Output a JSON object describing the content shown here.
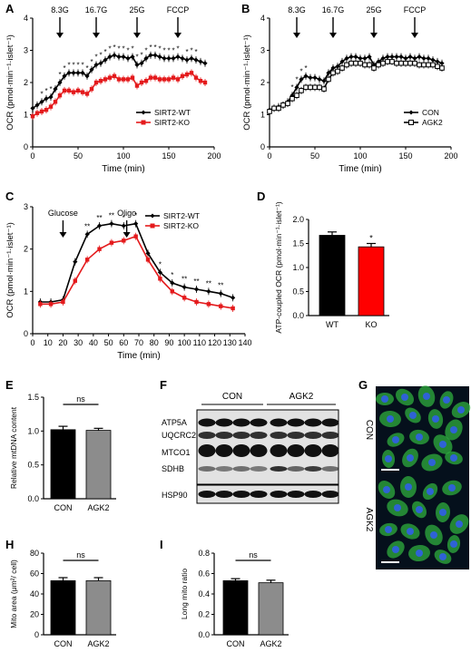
{
  "colors": {
    "black": "#000000",
    "red": "#e41a1c",
    "gray": "#8c8c8c",
    "blot_bg": "#e2e2e2",
    "band": "#111111",
    "micro_bg": "#05101c",
    "mito": "#2fae3d",
    "nucleus": "#2f62d6"
  },
  "panels": {
    "A": "A",
    "B": "B",
    "C": "C",
    "D": "D",
    "E": "E",
    "F": "F",
    "G": "G",
    "H": "H",
    "I": "I"
  },
  "chart_data": [
    {
      "panel": "A",
      "type": "line",
      "xlabel": "Time (min)",
      "ylabel": "OCR (pmol·min⁻¹·islet⁻¹)",
      "xlim": [
        0,
        200
      ],
      "ylim": [
        0,
        4
      ],
      "xticks": [
        "0",
        "50",
        "100",
        "150",
        "200"
      ],
      "yticks": [
        "0",
        "1",
        "2",
        "3",
        "4"
      ],
      "arrows": [
        {
          "label": "8.3G",
          "x": 30
        },
        {
          "label": "16.7G",
          "x": 70
        },
        {
          "label": "25G",
          "x": 115
        },
        {
          "label": "FCCP",
          "x": 160
        }
      ],
      "x": [
        0,
        5,
        10,
        15,
        20,
        25,
        30,
        35,
        40,
        45,
        50,
        55,
        60,
        65,
        70,
        75,
        80,
        85,
        90,
        95,
        100,
        105,
        110,
        115,
        120,
        125,
        130,
        135,
        140,
        145,
        150,
        155,
        160,
        165,
        170,
        175,
        180,
        185,
        190
      ],
      "series": [
        {
          "name": "SIRT2-WT",
          "color": "#000000",
          "marker": "diamond",
          "values": [
            1.2,
            1.3,
            1.4,
            1.5,
            1.55,
            1.8,
            2.0,
            2.2,
            2.3,
            2.3,
            2.3,
            2.3,
            2.2,
            2.4,
            2.55,
            2.6,
            2.7,
            2.8,
            2.85,
            2.8,
            2.8,
            2.75,
            2.8,
            2.55,
            2.6,
            2.75,
            2.85,
            2.85,
            2.8,
            2.75,
            2.75,
            2.75,
            2.8,
            2.75,
            2.7,
            2.75,
            2.7,
            2.65,
            2.6
          ]
        },
        {
          "name": "SIRT2-KO",
          "color": "#e41a1c",
          "marker": "square",
          "values": [
            0.95,
            1.05,
            1.1,
            1.15,
            1.25,
            1.4,
            1.6,
            1.75,
            1.75,
            1.7,
            1.75,
            1.7,
            1.65,
            1.8,
            2.0,
            2.05,
            2.1,
            2.15,
            2.2,
            2.1,
            2.1,
            2.1,
            2.15,
            1.9,
            2.0,
            2.05,
            2.15,
            2.15,
            2.1,
            2.1,
            2.1,
            2.15,
            2.1,
            2.2,
            2.25,
            2.3,
            2.15,
            2.05,
            2.0
          ]
        }
      ],
      "stars": [
        "*",
        "*",
        "*",
        "*",
        "*",
        "*",
        "*",
        "*",
        "*",
        "*",
        "*",
        "*",
        "*",
        "*",
        "*",
        "*",
        "*",
        "*",
        "*",
        "*",
        "*",
        "*",
        "*",
        "*",
        "*",
        "*",
        "*",
        "*",
        "*",
        "*",
        "*",
        "*",
        "*"
      ]
    },
    {
      "panel": "B",
      "type": "line",
      "xlabel": "Time (min)",
      "ylabel": "OCR (pmol·min⁻¹·islet⁻¹)",
      "xlim": [
        0,
        200
      ],
      "ylim": [
        0,
        4
      ],
      "xticks": [
        "0",
        "50",
        "100",
        "150",
        "200"
      ],
      "yticks": [
        "0",
        "1",
        "2",
        "3",
        "4"
      ],
      "arrows": [
        {
          "label": "8.3G",
          "x": 30
        },
        {
          "label": "16.7G",
          "x": 70
        },
        {
          "label": "25G",
          "x": 115
        },
        {
          "label": "FCCP",
          "x": 160
        }
      ],
      "x": [
        0,
        5,
        10,
        15,
        20,
        25,
        30,
        35,
        40,
        45,
        50,
        55,
        60,
        65,
        70,
        75,
        80,
        85,
        90,
        95,
        100,
        105,
        110,
        115,
        120,
        125,
        130,
        135,
        140,
        145,
        150,
        155,
        160,
        165,
        170,
        175,
        180,
        185,
        190
      ],
      "series": [
        {
          "name": "CON",
          "color": "#000000",
          "marker": "diamond",
          "values": [
            1.15,
            1.2,
            1.25,
            1.3,
            1.4,
            1.6,
            1.85,
            2.1,
            2.2,
            2.15,
            2.15,
            2.1,
            2.05,
            2.3,
            2.45,
            2.5,
            2.65,
            2.75,
            2.8,
            2.8,
            2.75,
            2.75,
            2.8,
            2.55,
            2.65,
            2.75,
            2.8,
            2.8,
            2.8,
            2.8,
            2.75,
            2.8,
            2.75,
            2.8,
            2.75,
            2.75,
            2.7,
            2.65,
            2.6
          ]
        },
        {
          "name": "AGK2",
          "color": "#000000",
          "marker": "open-square",
          "values": [
            1.1,
            1.2,
            1.2,
            1.3,
            1.35,
            1.5,
            1.6,
            1.75,
            1.85,
            1.85,
            1.85,
            1.85,
            1.8,
            2.1,
            2.3,
            2.35,
            2.45,
            2.55,
            2.6,
            2.6,
            2.6,
            2.55,
            2.55,
            2.45,
            2.55,
            2.6,
            2.65,
            2.65,
            2.6,
            2.6,
            2.6,
            2.6,
            2.6,
            2.55,
            2.55,
            2.55,
            2.55,
            2.5,
            2.45
          ]
        }
      ],
      "stars": [
        "*",
        "*",
        "*",
        "*"
      ]
    },
    {
      "panel": "C",
      "type": "line",
      "xlabel": "Time (min)",
      "ylabel": "OCR (pmol·min⁻¹·islet⁻¹)",
      "xlim": [
        0,
        140
      ],
      "ylim": [
        0,
        3
      ],
      "xticks": [
        "0",
        "10",
        "20",
        "30",
        "40",
        "50",
        "60",
        "70",
        "80",
        "90",
        "100",
        "110",
        "120",
        "130",
        "140"
      ],
      "yticks": [
        "0",
        "1",
        "2",
        "3"
      ],
      "arrows": [
        {
          "label": "Glucose",
          "x": 20
        },
        {
          "label": "Oligo",
          "x": 62
        }
      ],
      "x": [
        5,
        12,
        20,
        28,
        36,
        44,
        52,
        60,
        68,
        76,
        84,
        92,
        100,
        108,
        116,
        124,
        132
      ],
      "series": [
        {
          "name": "SIRT2-WT",
          "color": "#000000",
          "marker": "diamond",
          "values": [
            0.75,
            0.75,
            0.8,
            1.7,
            2.35,
            2.55,
            2.6,
            2.55,
            2.6,
            1.9,
            1.45,
            1.2,
            1.1,
            1.05,
            1.0,
            0.95,
            0.85
          ]
        },
        {
          "name": "SIRT2-KO",
          "color": "#e41a1c",
          "marker": "square",
          "values": [
            0.7,
            0.7,
            0.75,
            1.25,
            1.75,
            2.0,
            2.15,
            2.2,
            2.3,
            1.75,
            1.3,
            1.0,
            0.85,
            0.75,
            0.7,
            0.65,
            0.6
          ]
        }
      ],
      "stars": [
        "**",
        "**",
        "**",
        "*",
        "*",
        "*",
        "*",
        "**",
        "**",
        "**",
        "**"
      ]
    },
    {
      "panel": "D",
      "type": "bar",
      "ylabel": "ATP-coupled OCR (pmol·min⁻¹·islet⁻¹)",
      "categories": [
        "WT",
        "KO"
      ],
      "values": [
        1.67,
        1.43
      ],
      "errors": [
        0.07,
        0.07
      ],
      "colors": [
        "#000000",
        "#ff0000"
      ],
      "ylim": [
        0,
        2.0
      ],
      "yticks": [
        "0.0",
        "0.5",
        "1.0",
        "1.5",
        "2.0"
      ],
      "stars": [
        "",
        "*"
      ]
    },
    {
      "panel": "E",
      "type": "bar",
      "ylabel": "Relative mtDNA content",
      "categories": [
        "CON",
        "AGK2"
      ],
      "values": [
        1.02,
        1.01
      ],
      "errors": [
        0.05,
        0.03
      ],
      "colors": [
        "#000000",
        "#8c8c8c"
      ],
      "ylim": [
        0,
        1.5
      ],
      "yticks": [
        "0.0",
        "0.5",
        "1.0",
        "1.5"
      ],
      "significance": "ns"
    },
    {
      "panel": "H",
      "type": "bar",
      "ylabel": "Mito area (μm²/ cell)",
      "categories": [
        "CON",
        "AGK2"
      ],
      "values": [
        53,
        53
      ],
      "errors": [
        3,
        3
      ],
      "colors": [
        "#000000",
        "#8c8c8c"
      ],
      "ylim": [
        0,
        80
      ],
      "yticks": [
        "0",
        "20",
        "40",
        "60",
        "80"
      ],
      "significance": "ns"
    },
    {
      "panel": "I",
      "type": "bar",
      "ylabel": "Long mito ratio",
      "categories": [
        "CON",
        "AGK2"
      ],
      "values": [
        0.53,
        0.51
      ],
      "errors": [
        0.02,
        0.025
      ],
      "colors": [
        "#000000",
        "#8c8c8c"
      ],
      "ylim": [
        0,
        0.8
      ],
      "yticks": [
        "0.0",
        "0.2",
        "0.4",
        "0.6",
        "0.8"
      ],
      "significance": "ns"
    }
  ],
  "blot": {
    "groups": [
      "CON",
      "AGK2"
    ],
    "labels": [
      "ATP5A",
      "UQCRC2",
      "MTCO1",
      "SDHB",
      "HSP90"
    ]
  },
  "micro": {
    "labels": [
      "CON",
      "AGK2"
    ]
  }
}
